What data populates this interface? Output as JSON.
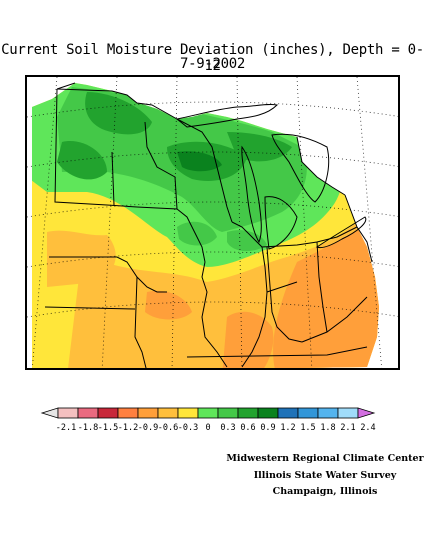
{
  "title": "Current Soil Moisture Deviation (inches), Depth = 0-12",
  "date": "7-9-2002",
  "legend": {
    "colors": [
      "#f4c0c0",
      "#ea6a80",
      "#c8283a",
      "#ff8040",
      "#ff9f3a",
      "#ffbf3c",
      "#ffe63a",
      "#5fe65a",
      "#44c848",
      "#22a32e",
      "#0a821e",
      "#1f72b8",
      "#3296d8",
      "#54b4ee",
      "#a0dcfa"
    ],
    "under_color": "#e6e6e6",
    "over_color": "#d26ee0",
    "tick_labels": [
      "-2.1",
      "-1.8",
      "-1.5",
      "-1.2",
      "-0.9",
      "-0.6",
      "-0.3",
      "0",
      "0.3",
      "0.6",
      "0.9",
      "1.2",
      "1.5",
      "1.8",
      "2.1",
      "2.4"
    ]
  },
  "credits": {
    "line1": "Midwestern Regional Climate Center",
    "line2": "Illinois State Water Survey",
    "line3": "Champaign, Illinois"
  }
}
